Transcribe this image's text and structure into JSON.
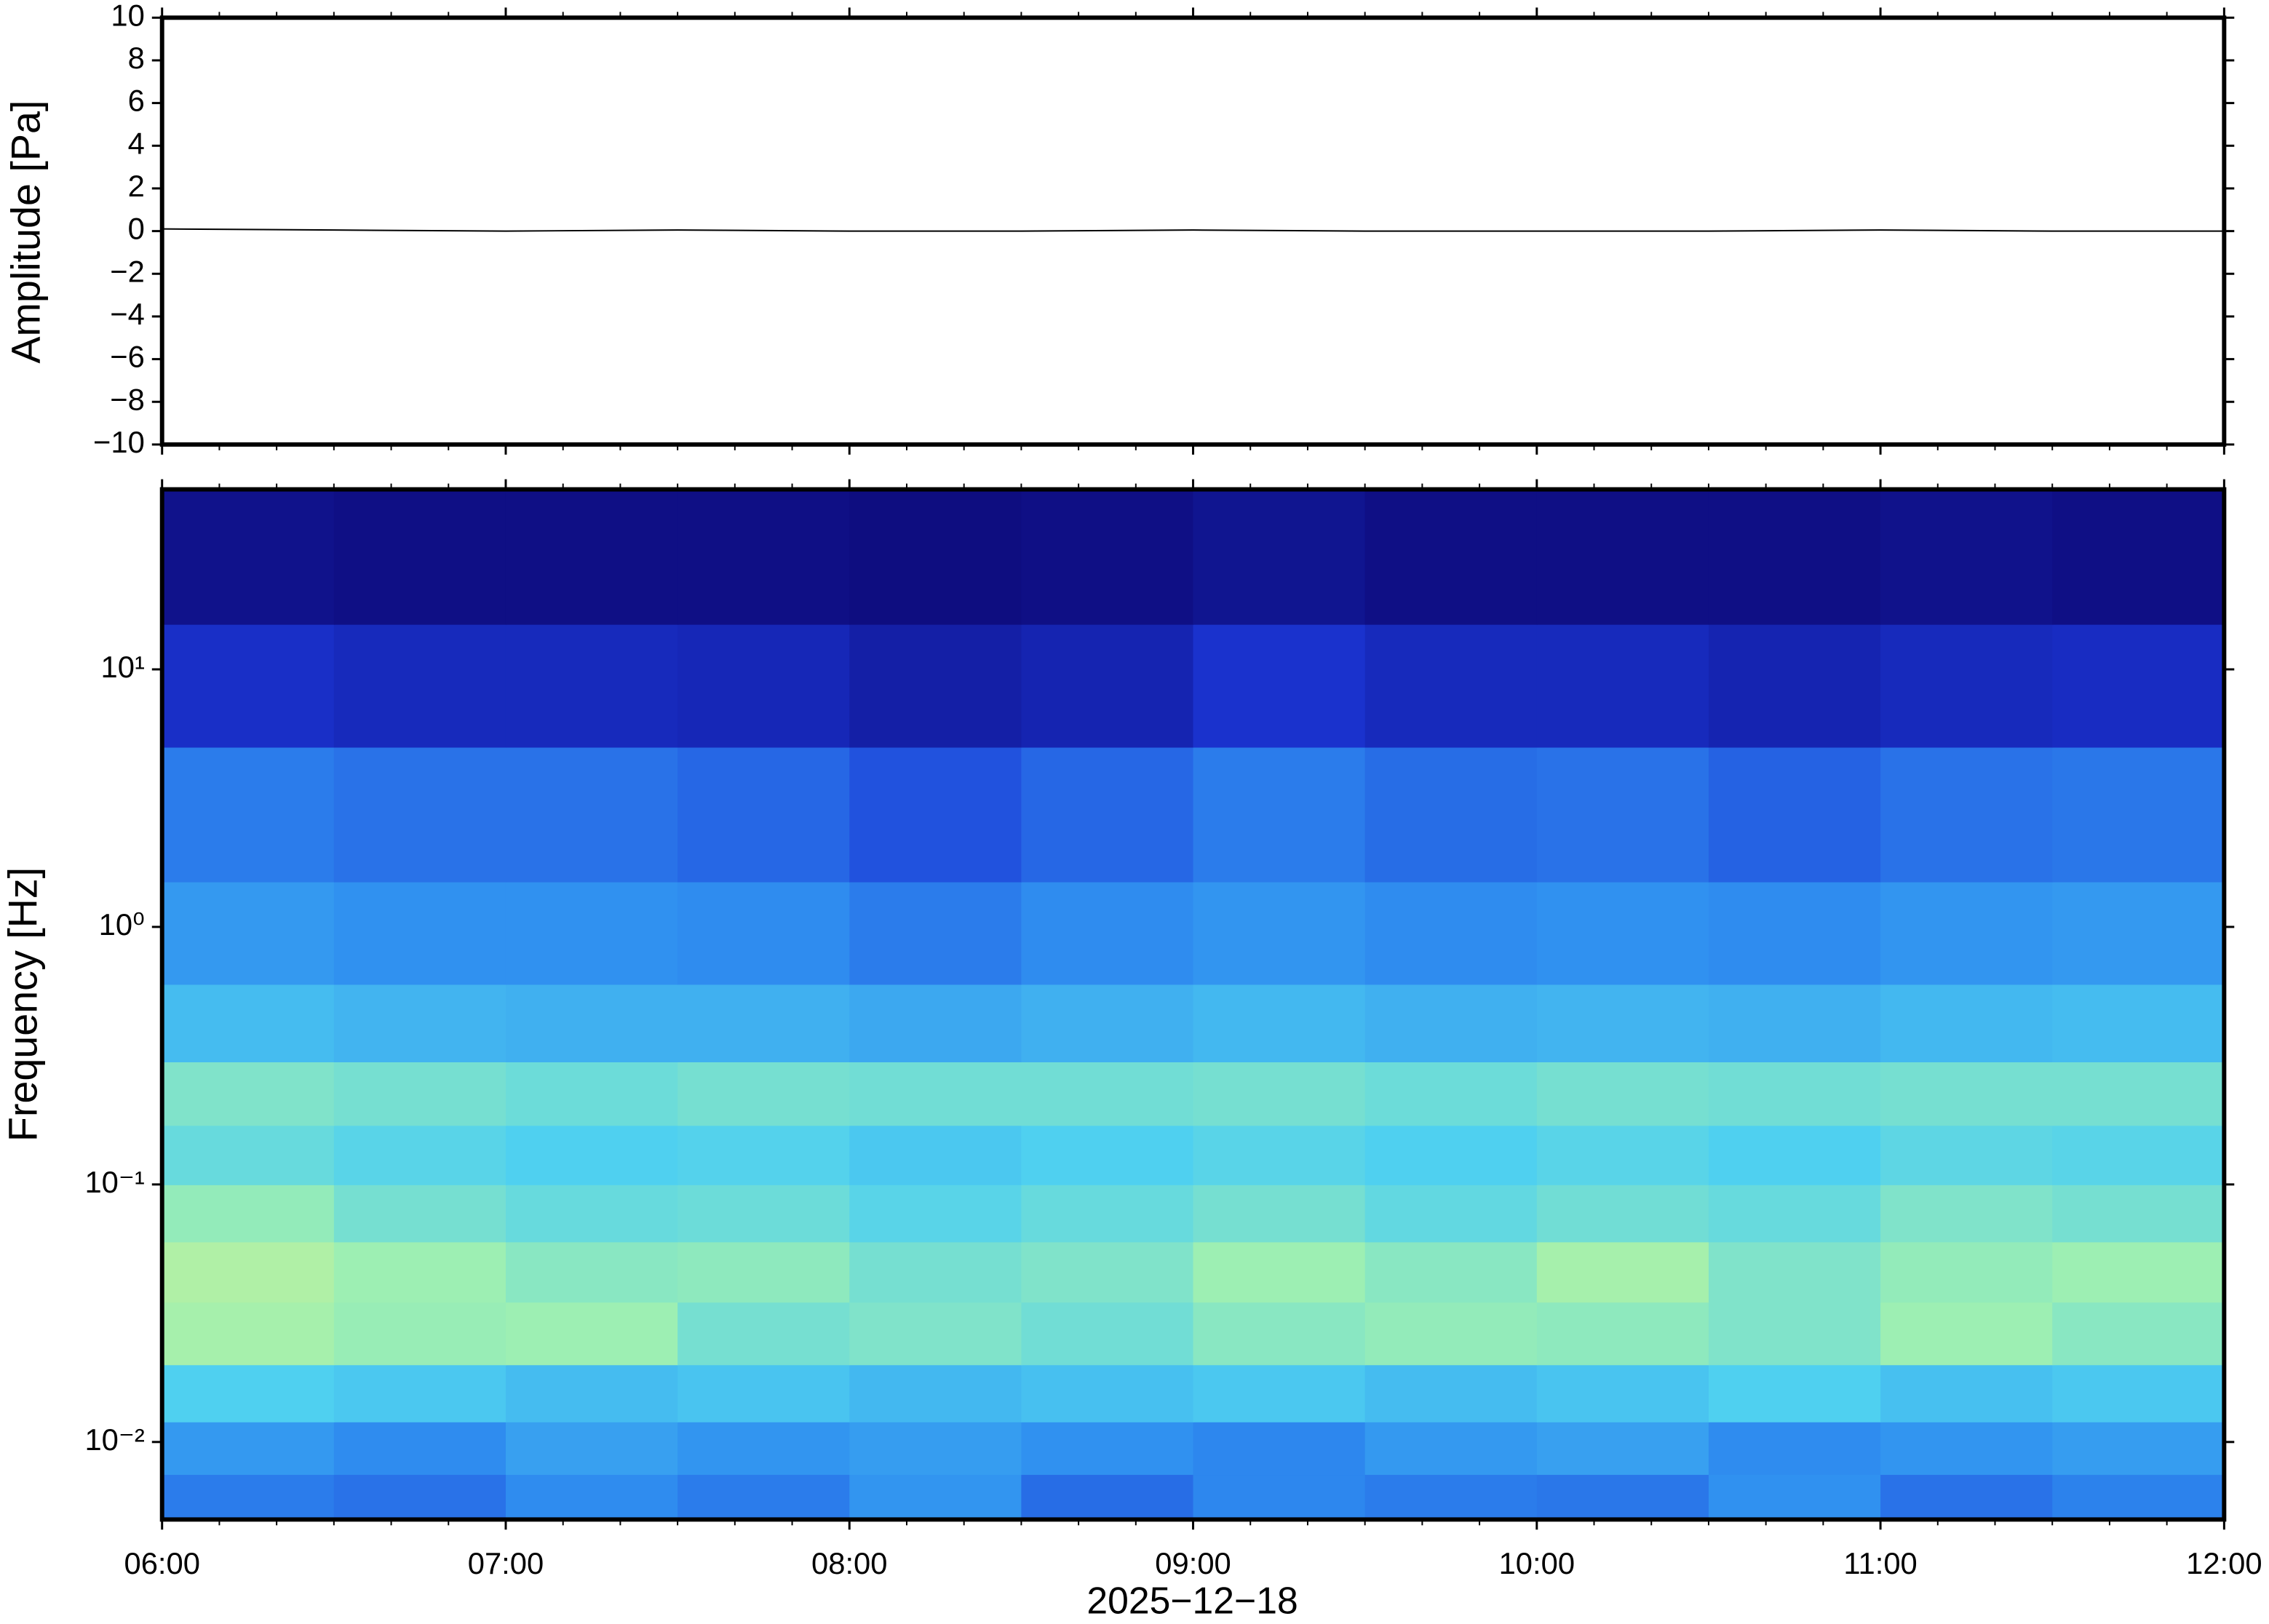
{
  "chart_data": [
    {
      "type": "line",
      "ylabel": "Amplitude [Pa]",
      "color": "#000000",
      "x": [
        "06:00",
        "06:30",
        "07:00",
        "07:30",
        "08:00",
        "08:30",
        "09:00",
        "09:30",
        "10:00",
        "10:30",
        "11:00",
        "11:30",
        "12:00"
      ],
      "values": [
        0.1,
        0.05,
        0,
        0.05,
        0,
        0,
        0.05,
        0,
        0,
        0,
        0.05,
        0,
        0
      ],
      "xlim": [
        "06:00",
        "12:00"
      ],
      "xticks": [
        "06:00",
        "07:00",
        "08:00",
        "09:00",
        "10:00",
        "11:00",
        "12:00"
      ],
      "ylim": [
        -10,
        10
      ],
      "yticks": [
        {
          "value": -10,
          "label": "−10"
        },
        {
          "value": -8,
          "label": "−8"
        },
        {
          "value": -6,
          "label": "−6"
        },
        {
          "value": -4,
          "label": "−4"
        },
        {
          "value": -2,
          "label": "−2"
        },
        0,
        2,
        4,
        6,
        8,
        10
      ]
    },
    {
      "type": "heatmap",
      "ylabel": "Frequency [Hz]",
      "xlabel": "2025−12−18",
      "log_y": true,
      "xlim": [
        "06:00",
        "12:00"
      ],
      "xticks": [
        "06:00",
        "07:00",
        "08:00",
        "09:00",
        "10:00",
        "11:00",
        "12:00"
      ],
      "ylim": [
        0.005,
        50
      ],
      "yticks": [
        {
          "value": 0.01,
          "label": "10⁻²"
        },
        {
          "value": 0.1,
          "label": "10⁻¹"
        },
        {
          "value": 1,
          "label": "10⁰"
        },
        {
          "value": 10,
          "label": "10¹"
        }
      ],
      "x_bins": [
        "06:00",
        "06:30",
        "07:00",
        "07:30",
        "08:00",
        "08:30",
        "09:00",
        "09:30",
        "10:00",
        "10:30",
        "11:00",
        "11:30",
        "12:00"
      ],
      "y_bins": [
        0.005,
        0.0075,
        0.012,
        0.02,
        0.035,
        0.06,
        0.1,
        0.17,
        0.3,
        0.6,
        1.5,
        5,
        15,
        50
      ],
      "zlim": [
        0,
        1
      ],
      "colors": [
        "#0d0a7a",
        "#1b36d6",
        "#2f8ef0",
        "#4fd0f0",
        "#a0f0b0",
        "#f0f080",
        "#f5b050"
      ],
      "values": [
        [
          0.3,
          0.28,
          0.33,
          0.3,
          0.35,
          0.27,
          0.32,
          0.3,
          0.29,
          0.34,
          0.28,
          0.31
        ],
        [
          0.36,
          0.33,
          0.38,
          0.35,
          0.37,
          0.34,
          0.32,
          0.36,
          0.38,
          0.33,
          0.35,
          0.37
        ],
        [
          0.5,
          0.48,
          0.45,
          0.47,
          0.44,
          0.46,
          0.48,
          0.45,
          0.47,
          0.5,
          0.46,
          0.48
        ],
        [
          0.68,
          0.65,
          0.66,
          0.58,
          0.6,
          0.57,
          0.62,
          0.64,
          0.63,
          0.6,
          0.66,
          0.62
        ],
        [
          0.7,
          0.66,
          0.62,
          0.63,
          0.58,
          0.6,
          0.66,
          0.62,
          0.68,
          0.6,
          0.64,
          0.66
        ],
        [
          0.64,
          0.58,
          0.55,
          0.56,
          0.52,
          0.55,
          0.58,
          0.54,
          0.57,
          0.55,
          0.6,
          0.58
        ],
        [
          0.55,
          0.52,
          0.5,
          0.51,
          0.48,
          0.5,
          0.52,
          0.5,
          0.52,
          0.5,
          0.53,
          0.52
        ],
        [
          0.6,
          0.58,
          0.56,
          0.58,
          0.57,
          0.57,
          0.58,
          0.56,
          0.58,
          0.57,
          0.58,
          0.58
        ],
        [
          0.45,
          0.43,
          0.42,
          0.42,
          0.4,
          0.42,
          0.44,
          0.42,
          0.43,
          0.42,
          0.44,
          0.45
        ],
        [
          0.36,
          0.34,
          0.34,
          0.33,
          0.3,
          0.33,
          0.35,
          0.33,
          0.34,
          0.33,
          0.35,
          0.36
        ],
        [
          0.3,
          0.28,
          0.28,
          0.26,
          0.22,
          0.26,
          0.3,
          0.27,
          0.28,
          0.25,
          0.28,
          0.29
        ],
        [
          0.14,
          0.12,
          0.12,
          0.11,
          0.08,
          0.1,
          0.15,
          0.12,
          0.12,
          0.1,
          0.12,
          0.13
        ],
        [
          0.03,
          0.02,
          0.02,
          0.02,
          0.01,
          0.02,
          0.04,
          0.02,
          0.02,
          0.02,
          0.03,
          0.02
        ]
      ]
    }
  ]
}
